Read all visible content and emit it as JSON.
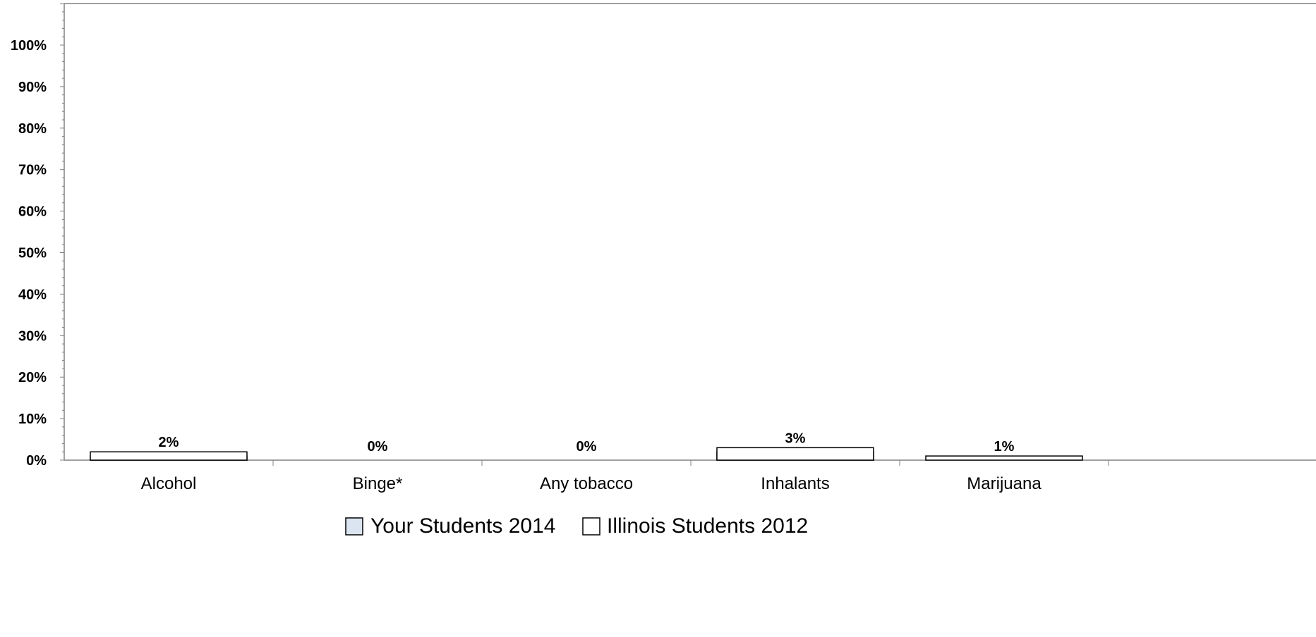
{
  "chart_data": {
    "type": "bar",
    "categories": [
      "Alcohol",
      "Binge*",
      "Any tobacco",
      "Inhalants",
      "Marijuana"
    ],
    "series": [
      {
        "name": "Your Students 2014",
        "values": [
          1,
          0,
          0,
          2,
          0
        ],
        "color": "#dbe5f1"
      },
      {
        "name": "Illinois Students 2012",
        "values": [
          2,
          0,
          0,
          3,
          1
        ],
        "color": "#ffffff"
      }
    ],
    "data_labels": [
      "2%",
      "0%",
      "0%",
      "3%",
      "1%"
    ],
    "yticks": [
      "0%",
      "10%",
      "20%",
      "30%",
      "40%",
      "50%",
      "60%",
      "70%",
      "80%",
      "90%",
      "100%"
    ],
    "ylim": [
      0,
      110
    ],
    "legend_placement": "bottom",
    "grid": false,
    "colors": {
      "axis": "#808080",
      "bar_border": "#000000"
    }
  }
}
